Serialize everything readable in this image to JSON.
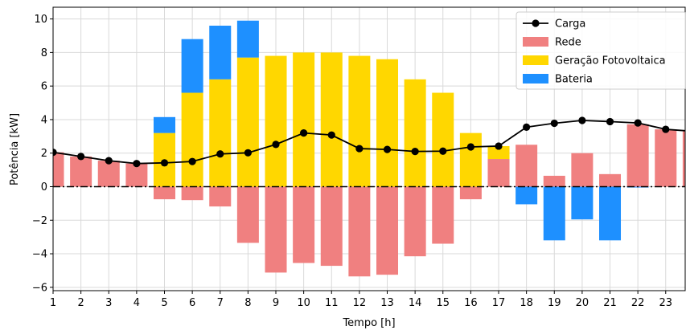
{
  "chart_data": {
    "type": "bar",
    "xlabel": "Tempo [h]",
    "ylabel": "Potência [kW]",
    "xlim": [
      1,
      23.7
    ],
    "ylim": [
      -6.2,
      10.7
    ],
    "grid": true,
    "legend_placement": "top-right",
    "x_ticks": [
      "1",
      "2",
      "3",
      "4",
      "5",
      "6",
      "7",
      "8",
      "9",
      "10",
      "11",
      "12",
      "13",
      "14",
      "15",
      "16",
      "17",
      "18",
      "19",
      "20",
      "21",
      "22",
      "23"
    ],
    "y_ticks": [
      "−6",
      "−4",
      "−2",
      "0",
      "2",
      "4",
      "6",
      "8",
      "10"
    ],
    "y_tick_values": [
      -6,
      -4,
      -2,
      0,
      2,
      4,
      6,
      8,
      10
    ],
    "x": [
      1,
      2,
      3,
      4,
      5,
      6,
      7,
      8,
      9,
      10,
      11,
      12,
      13,
      14,
      15,
      16,
      17,
      18,
      19,
      20,
      21,
      22,
      23,
      24
    ],
    "series": [
      {
        "name": "Carga",
        "kind": "line",
        "color": "#000000",
        "values": [
          2.05,
          1.8,
          1.55,
          1.38,
          1.42,
          1.5,
          1.95,
          2.02,
          2.52,
          3.2,
          3.08,
          2.27,
          2.22,
          2.1,
          2.12,
          2.37,
          2.42,
          3.55,
          3.78,
          3.95,
          3.88,
          3.8,
          3.42,
          3.3
        ]
      },
      {
        "name": "Rede",
        "kind": "bar",
        "color": "#f08080",
        "values": [
          2.05,
          1.8,
          1.55,
          1.38,
          -0.75,
          -0.8,
          -1.18,
          -3.35,
          -5.12,
          -4.55,
          -4.72,
          -5.35,
          -5.25,
          -4.15,
          -3.4,
          -0.75,
          1.65,
          2.5,
          0.65,
          2.0,
          0.75,
          3.72,
          3.42,
          3.3
        ]
      },
      {
        "name": "Geração Fotovoltaica",
        "kind": "bar",
        "color": "#ffd700",
        "values": [
          0,
          0,
          0,
          0,
          3.2,
          5.6,
          6.4,
          7.7,
          7.8,
          8.0,
          8.0,
          7.8,
          7.6,
          6.4,
          5.6,
          3.2,
          0.77,
          0,
          0,
          0,
          0,
          0,
          0,
          0
        ]
      },
      {
        "name": "Bateria",
        "kind": "bar",
        "color": "#1e90ff",
        "values": [
          0,
          0,
          0,
          0,
          0.95,
          3.2,
          3.2,
          2.2,
          0,
          0,
          0,
          0,
          0,
          0,
          0,
          0,
          0,
          -1.05,
          -3.2,
          -1.95,
          -3.2,
          -0.05,
          0,
          0
        ]
      }
    ]
  }
}
